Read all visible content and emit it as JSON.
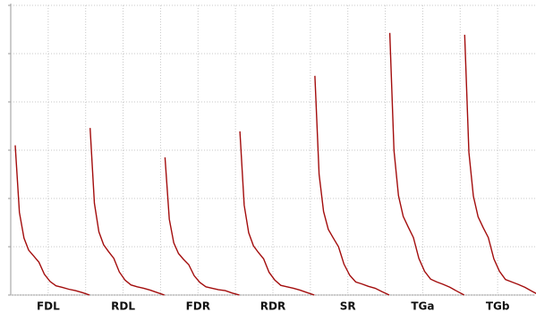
{
  "chart_data": {
    "type": "line",
    "color": "#a30d0d",
    "ylim": [
      0,
      6
    ],
    "yticks": [
      0,
      1,
      2,
      3,
      4,
      5,
      6
    ],
    "grid": true,
    "series": [
      {
        "name": "FDL",
        "values": [
          3.1,
          1.71,
          1.18,
          0.93,
          0.81,
          0.68,
          0.43,
          0.28,
          0.19,
          0.16,
          0.12,
          0.09,
          0.05,
          0
        ]
      },
      {
        "name": "RDL",
        "values": [
          3.46,
          1.9,
          1.31,
          1.04,
          0.9,
          0.76,
          0.48,
          0.31,
          0.21,
          0.17,
          0.14,
          0.1,
          0.05,
          0
        ]
      },
      {
        "name": "FDR",
        "values": [
          2.85,
          1.57,
          1.08,
          0.86,
          0.74,
          0.63,
          0.4,
          0.26,
          0.17,
          0.14,
          0.11,
          0.09,
          0.04,
          0
        ]
      },
      {
        "name": "RDR",
        "values": [
          3.39,
          1.86,
          1.29,
          1.02,
          0.88,
          0.75,
          0.47,
          0.31,
          0.2,
          0.17,
          0.14,
          0.1,
          0.05,
          0
        ]
      },
      {
        "name": "SR",
        "values": [
          4.54,
          2.5,
          1.73,
          1.36,
          1.18,
          1,
          0.64,
          0.41,
          0.27,
          0.23,
          0.18,
          0.14,
          0.07,
          0
        ]
      },
      {
        "name": "TGa",
        "values": [
          5.43,
          2.99,
          2.06,
          1.63,
          1.41,
          1.19,
          0.76,
          0.49,
          0.33,
          0.27,
          0.22,
          0.16,
          0.08,
          0
        ]
      },
      {
        "name": "TGb",
        "values": [
          5.39,
          2.96,
          2.05,
          1.62,
          1.4,
          1.19,
          0.75,
          0.49,
          0.32,
          0.27,
          0.22,
          0.16,
          0.08,
          0
        ]
      }
    ]
  }
}
